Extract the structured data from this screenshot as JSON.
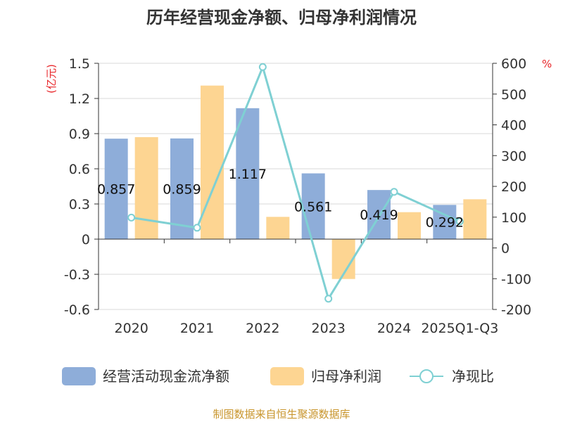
{
  "chart_data": {
    "type": "bar",
    "title": "历年经营现金净额、归母净利润情况",
    "categories": [
      "2020",
      "2021",
      "2022",
      "2023",
      "2024",
      "2025Q1-Q3"
    ],
    "series": [
      {
        "name": "经营活动现金流净额",
        "type": "bar",
        "axis": "left",
        "color": "#8eadd9",
        "values": [
          0.857,
          0.859,
          1.117,
          0.561,
          0.419,
          0.292
        ]
      },
      {
        "name": "归母净利润",
        "type": "bar",
        "axis": "left",
        "color": "#fdd592",
        "values": [
          0.87,
          1.31,
          0.19,
          -0.34,
          0.23,
          0.34
        ]
      },
      {
        "name": "净现比",
        "type": "line",
        "axis": "right",
        "color": "#7fd0d3",
        "values": [
          98.5,
          65.6,
          587.9,
          -165,
          182.2,
          85.9
        ]
      }
    ],
    "data_labels": [
      "0.857",
      "0.859",
      "1.117",
      "0.561",
      "0.419",
      "0.292"
    ],
    "left_axis": {
      "unit": "(亿元)",
      "ylim": [
        -0.6,
        1.5
      ],
      "ticks": [
        -0.6,
        -0.3,
        0,
        0.3,
        0.6,
        0.9,
        1.2,
        1.5
      ],
      "tick_labels": [
        "-0.6",
        "-0.3",
        "0",
        "0.3",
        "0.6",
        "0.9",
        "1.2",
        "1.5"
      ]
    },
    "right_axis": {
      "unit": "%",
      "ylim": [
        -200,
        600
      ],
      "ticks": [
        -200,
        -100,
        0,
        100,
        200,
        300,
        400,
        500,
        600
      ],
      "tick_labels": [
        "-200",
        "-100",
        "0",
        "100",
        "200",
        "300",
        "400",
        "500",
        "600"
      ]
    },
    "grid": true,
    "legend_position": "bottom"
  },
  "source": "制图数据来自恒生聚源数据库"
}
